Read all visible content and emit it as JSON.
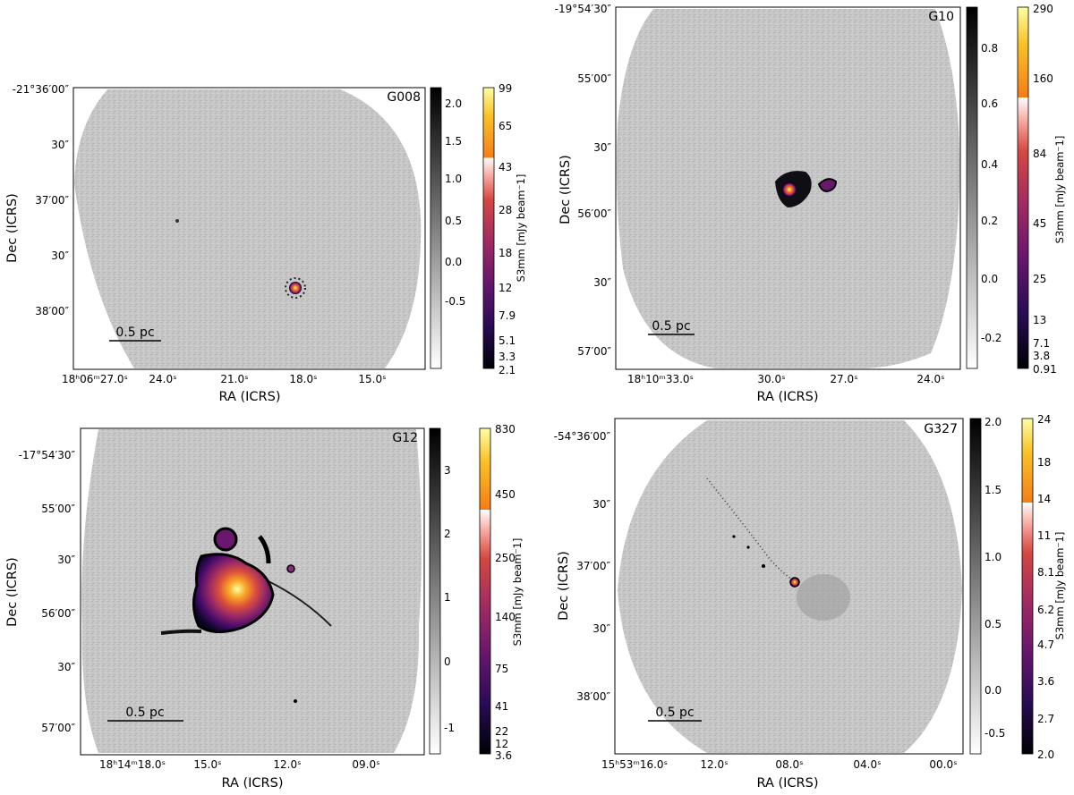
{
  "panels": [
    {
      "name": "G008",
      "xlabel": "RA (ICRS)",
      "ylabel": "Dec (ICRS)",
      "ra_ticks": [
        "18ʰ06ᵐ27.0ˢ",
        "24.0ˢ",
        "21.0ˢ",
        "18.0ˢ",
        "15.0ˢ"
      ],
      "dec_ticks": [
        "-21°36′00″",
        "30″",
        "37′00″",
        "30″",
        "38′00″"
      ],
      "scalebar": "0.5 pc",
      "gray_cbar_ticks": [
        "2.0",
        "1.5",
        "1.0",
        "0.5",
        "0.0",
        "-0.5"
      ],
      "color_cbar_ticks": [
        "99",
        "65",
        "43",
        "28",
        "18",
        "12",
        "7.9",
        "5.1",
        "3.3",
        "2.1"
      ],
      "color_cbar_label": "S3mm [mJy beam⁻1]"
    },
    {
      "name": "G10",
      "xlabel": "RA (ICRS)",
      "ylabel": "Dec (ICRS)",
      "ra_ticks": [
        "18ʰ10ᵐ33.0ˢ",
        "30.0ˢ",
        "27.0ˢ",
        "24.0ˢ"
      ],
      "dec_ticks": [
        "-19°54′30″",
        "55′00″",
        "30″",
        "56′00″",
        "30″",
        "57′00″"
      ],
      "scalebar": "0.5 pc",
      "gray_cbar_ticks": [
        "0.8",
        "0.6",
        "0.4",
        "0.2",
        "0.0",
        "-0.2"
      ],
      "color_cbar_ticks": [
        "290",
        "160",
        "84",
        "45",
        "25",
        "13",
        "7.1",
        "3.8",
        "0.91"
      ],
      "color_cbar_label": "S3mm [mJy beam⁻1]"
    },
    {
      "name": "G12",
      "xlabel": "RA (ICRS)",
      "ylabel": "Dec (ICRS)",
      "ra_ticks": [
        "18ʰ14ᵐ18.0ˢ",
        "15.0ˢ",
        "12.0ˢ",
        "09.0ˢ"
      ],
      "dec_ticks": [
        "-17°54′30″",
        "55′00″",
        "30″",
        "56′00″",
        "30″",
        "57′00″"
      ],
      "scalebar": "0.5 pc",
      "gray_cbar_ticks": [
        "3",
        "2",
        "1",
        "0",
        "-1"
      ],
      "color_cbar_ticks": [
        "830",
        "450",
        "250",
        "140",
        "75",
        "41",
        "22",
        "12",
        "3.6"
      ],
      "color_cbar_label": "S3mm [mJy beam⁻1]"
    },
    {
      "name": "G327",
      "xlabel": "RA (ICRS)",
      "ylabel": "Dec (ICRS)",
      "ra_ticks": [
        "15ʰ53ᵐ16.0ˢ",
        "12.0ˢ",
        "08.0ˢ",
        "04.0ˢ",
        "00.0ˢ"
      ],
      "dec_ticks": [
        "-54°36′00″",
        "30″",
        "37′00″",
        "30″",
        "38′00″"
      ],
      "scalebar": "0.5 pc",
      "gray_cbar_ticks": [
        "2.0",
        "1.5",
        "1.0",
        "0.5",
        "0.0",
        "-0.5"
      ],
      "color_cbar_ticks": [
        "24",
        "18",
        "14",
        "11",
        "8.1",
        "6.2",
        "4.7",
        "3.6",
        "2.7",
        "2.0"
      ],
      "color_cbar_label": "S3mm [mJy beam⁻1]"
    }
  ],
  "colors": {
    "map_gray": "#c5c5c5",
    "inferno_low": "#000004",
    "inferno_mid": "#bc3754",
    "inferno_high": "#fcffa4"
  }
}
